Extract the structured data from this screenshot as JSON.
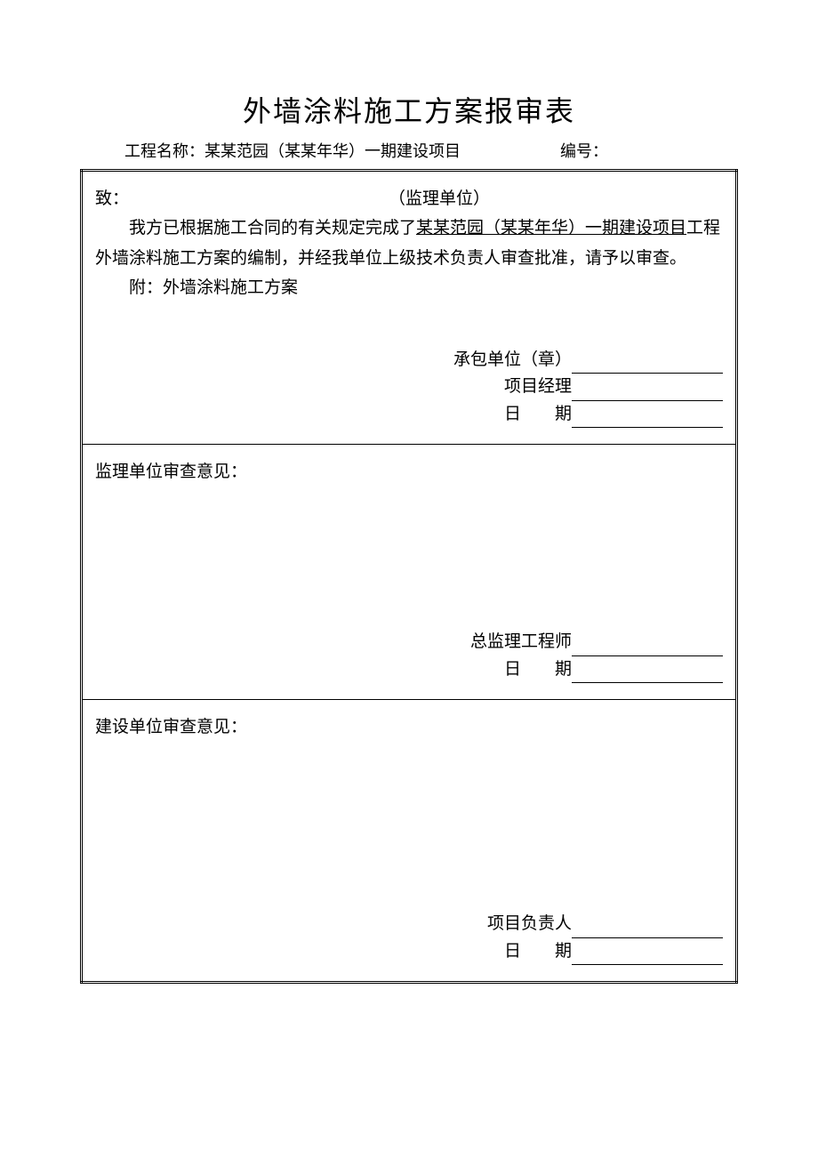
{
  "title": "外墙涂料施工方案报审表",
  "subheader": {
    "project_label": "工程名称：",
    "project_name": "某某范园（某某年华）一期建设项目",
    "number_label": "编号："
  },
  "section1": {
    "to_label": "致：",
    "to_unit": "（监理单位）",
    "body_prefix": "我方已根据施工合同的有关规定完成了",
    "body_underlined": "某某范园（某某年华）一期建设项目",
    "body_suffix": "工程外墙涂料施工方案的编制，并经我单位上级技术负责人审查批准，请予以审查。",
    "attach": "附：外墙涂料施工方案",
    "sig_contractor": "承包单位（章）",
    "sig_pm": "项目经理",
    "sig_date": "日　　期"
  },
  "section2": {
    "heading": "监理单位审查意见：",
    "sig_engineer": "总监理工程师",
    "sig_date": "日　　期"
  },
  "section3": {
    "heading": "建设单位审查意见：",
    "sig_owner": "项目负责人",
    "sig_date": "日　　期"
  },
  "style": {
    "text_color": "#000000",
    "background_color": "#ffffff",
    "border_color": "#000000",
    "title_fontsize": 32,
    "body_fontsize": 19,
    "subheader_fontsize": 18,
    "font_family": "SimSun"
  }
}
